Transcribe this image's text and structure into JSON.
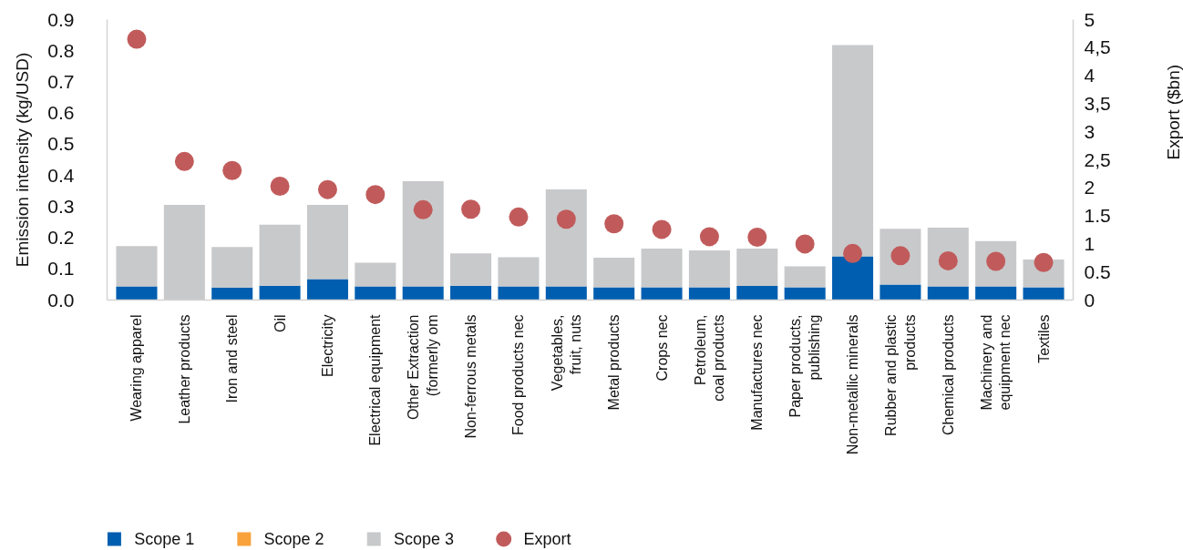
{
  "chart_data": {
    "type": "bar",
    "stacked": true,
    "categories": [
      "Wearing apparel",
      "Leather products",
      "Iron and steel",
      "Oil",
      "Electricity",
      "Electrical equipment",
      "Other Extraction\n(formerly om",
      "Non-ferrous metals",
      "Food products nec",
      "Vegetables,\nfruit, nuts",
      "Metal products",
      "Crops nec",
      "Petroleum,\ncoal products",
      "Manufactures nec",
      "Paper products,\npublishing",
      "Non-metallic minerals",
      "Rubber and plastic\nproducts",
      "Chemical products",
      "Machinery and\nequipment nec",
      "Textiles"
    ],
    "series": [
      {
        "name": "Scope 1",
        "color": "#005eb0",
        "values": [
          0.044,
          0,
          0.04,
          0.046,
          0.067,
          0.044,
          0.044,
          0.046,
          0.044,
          0.044,
          0.041,
          0.041,
          0.041,
          0.045,
          0.041,
          0.14,
          0.05,
          0.044,
          0.044,
          0.041
        ]
      },
      {
        "name": "Scope 2",
        "color": "#f9a23b",
        "values": [
          0,
          0,
          0,
          0,
          0,
          0,
          0,
          0,
          0,
          0,
          0,
          0,
          0,
          0,
          0,
          0,
          0,
          0,
          0,
          0
        ]
      },
      {
        "name": "Scope 3",
        "color": "#c8c9cb",
        "values": [
          0.129,
          0.305,
          0.13,
          0.196,
          0.238,
          0.076,
          0.337,
          0.104,
          0.093,
          0.311,
          0.095,
          0.124,
          0.118,
          0.12,
          0.067,
          0.678,
          0.179,
          0.188,
          0.145,
          0.089
        ]
      },
      {
        "name": "Export",
        "type": "scatter",
        "axis": "y2",
        "marker": "circle",
        "color": "#c15b5b",
        "values": [
          4.65,
          2.47,
          2.31,
          2.03,
          1.97,
          1.88,
          1.61,
          1.62,
          1.48,
          1.44,
          1.36,
          1.26,
          1.13,
          1.12,
          1.0,
          0.83,
          0.79,
          0.7,
          0.69,
          0.67
        ]
      }
    ],
    "ylabel": "Emission intensity (kg/USD)",
    "y2label": "Export ($bn)",
    "ylim": [
      0,
      0.9
    ],
    "yticks": [
      {
        "value": 0,
        "label": "0.0"
      },
      0.1,
      0.2,
      0.3,
      0.4,
      0.5,
      0.6,
      0.7,
      0.8,
      0.9
    ],
    "y2lim": [
      0,
      5
    ],
    "y2ticks": [
      0,
      0.5,
      1,
      1.5,
      2,
      {
        "value": 2.5,
        "label": "2,5"
      },
      3,
      {
        "value": 3.5,
        "label": "3,5"
      },
      4,
      {
        "value": 4.5,
        "label": "4,5"
      },
      5
    ],
    "grid": false,
    "legend": "bottom"
  }
}
